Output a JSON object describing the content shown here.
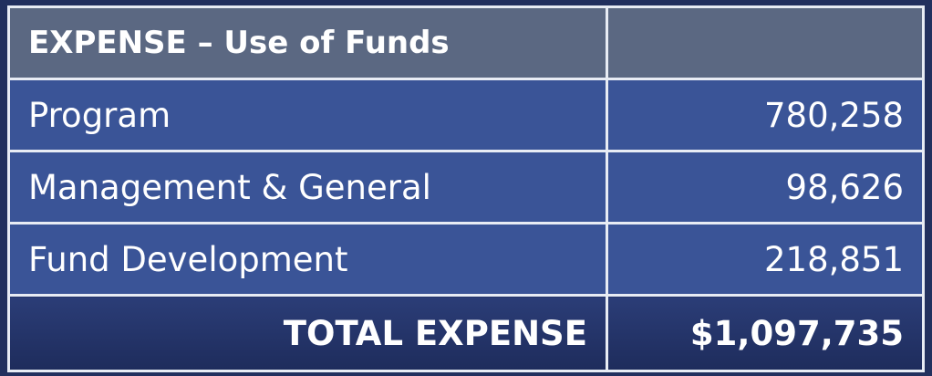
{
  "header": {
    "title": "EXPENSE – Use of Funds"
  },
  "table": {
    "rows": [
      [
        "Program",
        "780,258"
      ],
      [
        "Management & General",
        "98,626"
      ],
      [
        "Fund Development",
        "218,851"
      ]
    ]
  },
  "total": {
    "label": "TOTAL EXPENSE",
    "value": "$1,097,735"
  }
}
